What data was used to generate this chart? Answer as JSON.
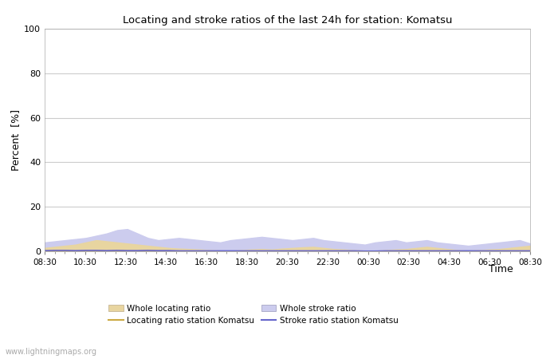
{
  "title": "Locating and stroke ratios of the last 24h for station: Komatsu",
  "xlabel": "Time",
  "ylabel": "Percent  [%]",
  "ylim": [
    0,
    100
  ],
  "yticks": [
    0,
    20,
    40,
    60,
    80,
    100
  ],
  "xtick_labels": [
    "08:30",
    "10:30",
    "12:30",
    "14:30",
    "16:30",
    "18:30",
    "20:30",
    "22:30",
    "00:30",
    "02:30",
    "04:30",
    "06:30",
    "08:30"
  ],
  "bg_color": "#ffffff",
  "plot_bg_color": "#ffffff",
  "grid_color": "#cccccc",
  "watermark": "www.lightningmaps.org",
  "whole_locating_color": "#e8d5a0",
  "whole_stroke_color": "#ccccee",
  "locating_line_color": "#ccaa44",
  "stroke_line_color": "#6666cc",
  "whole_locating_ratio": [
    1.5,
    2.0,
    2.5,
    3.0,
    4.0,
    5.0,
    4.5,
    4.0,
    3.5,
    3.0,
    2.5,
    2.0,
    1.5,
    1.2,
    1.0,
    0.8,
    0.5,
    0.3,
    0.2,
    0.5,
    0.8,
    1.0,
    0.8,
    1.2,
    1.5,
    1.8,
    2.0,
    1.5,
    1.0,
    0.8,
    0.5,
    0.3,
    0.2,
    0.5,
    0.8,
    1.0,
    1.5,
    2.0,
    1.5,
    1.0,
    0.5,
    0.3,
    0.5,
    0.8,
    1.0,
    1.5,
    2.0,
    2.5
  ],
  "whole_stroke_ratio": [
    4.0,
    4.5,
    5.0,
    5.5,
    6.0,
    7.0,
    8.0,
    9.5,
    10.0,
    8.0,
    6.0,
    5.0,
    5.5,
    6.0,
    5.5,
    5.0,
    4.5,
    4.0,
    5.0,
    5.5,
    6.0,
    6.5,
    6.0,
    5.5,
    5.0,
    5.5,
    6.0,
    5.0,
    4.5,
    4.0,
    3.5,
    3.0,
    4.0,
    4.5,
    5.0,
    4.0,
    4.5,
    5.0,
    4.0,
    3.5,
    3.0,
    2.5,
    3.0,
    3.5,
    4.0,
    4.5,
    5.0,
    3.5
  ],
  "locating_station": [
    0.2,
    0.3,
    0.3,
    0.2,
    0.3,
    0.3,
    0.2,
    0.3,
    0.2,
    0.2,
    0.3,
    0.2,
    0.2,
    0.1,
    0.1,
    0.1,
    0.1,
    0.1,
    0.1,
    0.1,
    0.1,
    0.1,
    0.1,
    0.1,
    0.1,
    0.1,
    0.1,
    0.1,
    0.1,
    0.1,
    0.1,
    0.0,
    0.0,
    0.1,
    0.1,
    0.1,
    0.1,
    0.1,
    0.1,
    0.1,
    0.1,
    0.1,
    0.1,
    0.1,
    0.1,
    0.1,
    0.1,
    0.1
  ],
  "stroke_station": [
    0.3,
    0.4,
    0.4,
    0.3,
    0.4,
    0.4,
    0.3,
    0.4,
    0.3,
    0.3,
    0.4,
    0.3,
    0.3,
    0.2,
    0.2,
    0.2,
    0.2,
    0.2,
    0.2,
    0.2,
    0.2,
    0.2,
    0.2,
    0.2,
    0.2,
    0.2,
    0.2,
    0.2,
    0.2,
    0.2,
    0.2,
    0.1,
    0.1,
    0.2,
    0.2,
    0.2,
    0.2,
    0.2,
    0.2,
    0.2,
    0.2,
    0.2,
    0.2,
    0.2,
    0.2,
    0.2,
    0.2,
    0.2
  ]
}
